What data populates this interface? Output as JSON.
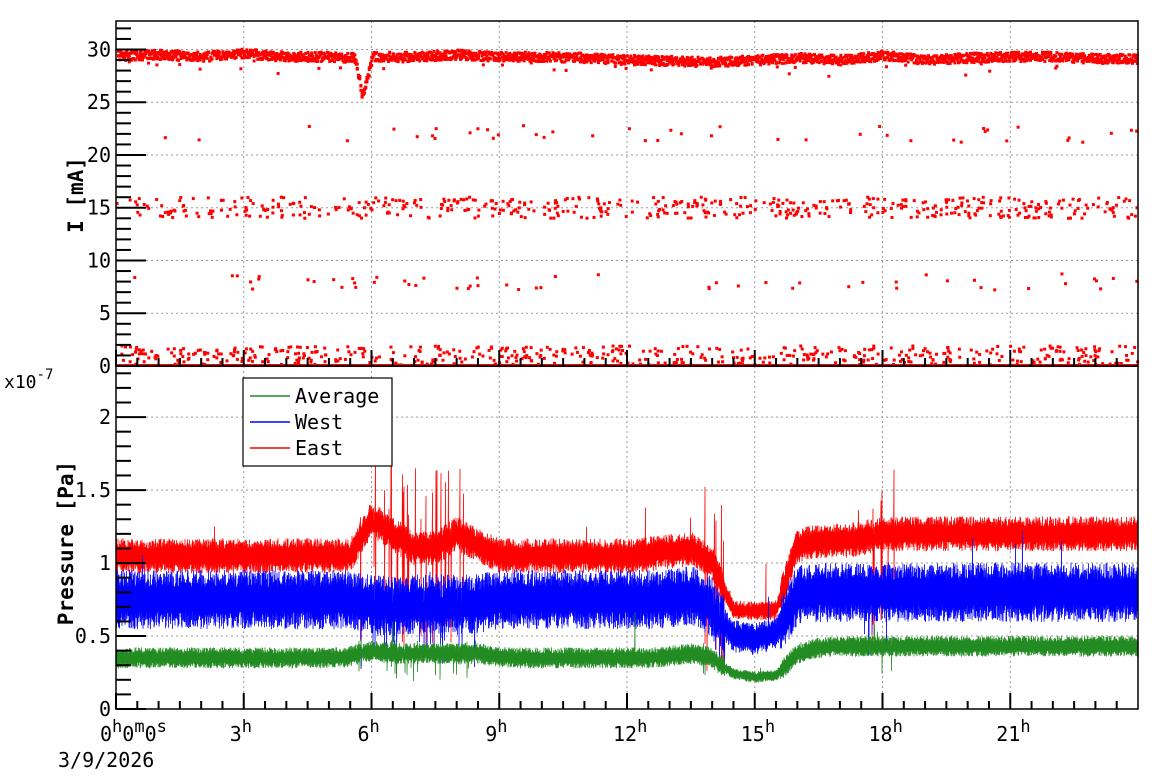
{
  "chart_data": [
    {
      "type": "scatter",
      "title": "",
      "ylabel": "I [mA]",
      "xlabel": "",
      "xlim_hours": [
        0,
        24
      ],
      "ylim": [
        0,
        32.7
      ],
      "y_ticks": [
        0,
        5,
        10,
        15,
        20,
        25,
        30
      ],
      "grid": true,
      "color": "#ff0000",
      "main_band": {
        "x_hours": [
          0,
          1,
          2,
          3,
          4,
          5,
          5.6,
          5.75,
          6,
          7,
          8,
          9,
          10,
          11,
          12,
          13,
          14,
          15,
          16,
          17,
          18,
          19,
          20,
          21,
          22,
          23,
          24
        ],
        "values": [
          29.4,
          29.5,
          29.3,
          29.6,
          29.3,
          29.3,
          29.2,
          25.5,
          29.3,
          29.3,
          29.5,
          29.3,
          29.3,
          29.2,
          29.0,
          28.9,
          28.8,
          29.0,
          29.2,
          29.0,
          29.4,
          29.0,
          29.2,
          29.3,
          29.3,
          29.1,
          29.1
        ]
      },
      "scatter_levels": [
        22,
        15,
        8,
        1,
        0
      ]
    },
    {
      "type": "line",
      "title": "",
      "ylabel": "Pressure [Pa]",
      "y_multiplier": "x10",
      "y_exponent": "-7",
      "xlim_hours": [
        0,
        24
      ],
      "ylim": [
        0,
        2.35
      ],
      "y_ticks": [
        0,
        0.5,
        1,
        1.5,
        2
      ],
      "y_tick_labels": [
        "0",
        "0.5",
        "1",
        "1.5",
        "2"
      ],
      "grid": true,
      "legend_position": "top-left",
      "x_hours": [
        0,
        0.5,
        1,
        1.5,
        2,
        2.5,
        3,
        3.5,
        4,
        4.5,
        5,
        5.5,
        6,
        6.5,
        7,
        7.5,
        8,
        8.5,
        9,
        9.5,
        10,
        10.5,
        11,
        11.5,
        12,
        12.5,
        13,
        13.5,
        14,
        14.5,
        15,
        15.5,
        16,
        16.5,
        17,
        17.5,
        18,
        18.5,
        19,
        19.5,
        20,
        20.5,
        21,
        21.5,
        22,
        22.5,
        23,
        23.5,
        24
      ],
      "series": [
        {
          "name": "West",
          "color": "#0000ff",
          "band": 0.17,
          "values": [
            0.75,
            0.75,
            0.75,
            0.75,
            0.75,
            0.75,
            0.75,
            0.75,
            0.75,
            0.75,
            0.75,
            0.75,
            0.72,
            0.7,
            0.72,
            0.72,
            0.72,
            0.72,
            0.75,
            0.75,
            0.75,
            0.75,
            0.75,
            0.75,
            0.75,
            0.75,
            0.76,
            0.78,
            0.7,
            0.5,
            0.48,
            0.52,
            0.78,
            0.8,
            0.8,
            0.8,
            0.8,
            0.8,
            0.8,
            0.8,
            0.8,
            0.8,
            0.8,
            0.8,
            0.8,
            0.8,
            0.8,
            0.8,
            0.8
          ]
        },
        {
          "name": "Average",
          "color": "#228b22",
          "band": 0.06,
          "values": [
            0.35,
            0.35,
            0.35,
            0.35,
            0.35,
            0.35,
            0.35,
            0.35,
            0.35,
            0.35,
            0.35,
            0.36,
            0.4,
            0.38,
            0.38,
            0.38,
            0.38,
            0.38,
            0.36,
            0.35,
            0.35,
            0.35,
            0.35,
            0.35,
            0.35,
            0.35,
            0.36,
            0.38,
            0.35,
            0.24,
            0.22,
            0.23,
            0.38,
            0.42,
            0.43,
            0.43,
            0.43,
            0.43,
            0.43,
            0.43,
            0.43,
            0.43,
            0.43,
            0.43,
            0.43,
            0.43,
            0.43,
            0.43,
            0.43
          ]
        },
        {
          "name": "East",
          "color": "#ff0000",
          "band": 0.1,
          "values": [
            1.05,
            1.05,
            1.05,
            1.05,
            1.05,
            1.05,
            1.05,
            1.05,
            1.05,
            1.05,
            1.05,
            1.05,
            1.3,
            1.2,
            1.1,
            1.1,
            1.2,
            1.12,
            1.05,
            1.05,
            1.05,
            1.05,
            1.05,
            1.05,
            1.05,
            1.06,
            1.08,
            1.1,
            1.0,
            0.68,
            0.67,
            0.68,
            1.12,
            1.15,
            1.15,
            1.17,
            1.2,
            1.2,
            1.2,
            1.2,
            1.2,
            1.2,
            1.2,
            1.2,
            1.2,
            1.2,
            1.2,
            1.2,
            1.2
          ]
        }
      ],
      "legend_order": [
        "Average",
        "West",
        "East"
      ]
    }
  ],
  "x_axis": {
    "tick_hours": [
      0,
      3,
      6,
      9,
      12,
      15,
      18,
      21
    ],
    "tick_labels": [
      [
        [
          "0",
          "h"
        ],
        [
          "0",
          "m"
        ],
        [
          "0",
          "s"
        ]
      ],
      [
        [
          "3",
          "h"
        ]
      ],
      [
        [
          "6",
          "h"
        ]
      ],
      [
        [
          "9",
          "h"
        ]
      ],
      [
        [
          "12",
          "h"
        ]
      ],
      [
        [
          "15",
          "h"
        ]
      ],
      [
        [
          "18",
          "h"
        ]
      ],
      [
        [
          "21",
          "h"
        ]
      ]
    ],
    "date": "3/9/2026"
  }
}
